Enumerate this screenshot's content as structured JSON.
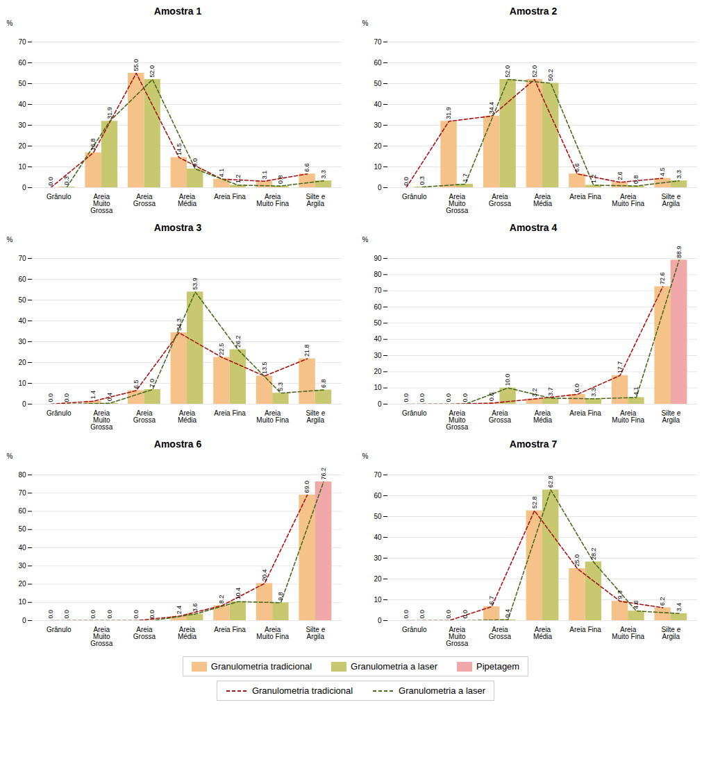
{
  "legend": "bottom",
  "chart_data": [
    {
      "type": "bar",
      "title": "Amostra 1",
      "ylabel": "%",
      "categories": [
        "Grânulo",
        "Areia\nMuito\nGrossa",
        "Areia\nGrossa",
        "Areia\nMédia",
        "Areia Fina",
        "Areia\nMuito Fina",
        "Silte e\nArgila"
      ],
      "ylim": [
        0,
        70
      ],
      "yticks": [
        0,
        10,
        20,
        30,
        40,
        50,
        60,
        70
      ],
      "grid": true,
      "data_labels": true,
      "series": [
        {
          "name": "Granulometria tradicional",
          "color": "#f5c28a",
          "values": [
            0.0,
            16.8,
            55.0,
            14.5,
            4.1,
            3.1,
            6.6
          ],
          "value_labels": [
            "0.0",
            "16.8",
            "55.0",
            "14.5",
            "4.1",
            "3.1",
            "6.6"
          ]
        },
        {
          "name": "Granulometria a laser",
          "color": "#c8c870",
          "values": [
            0.3,
            31.9,
            52.0,
            9.0,
            1.2,
            0.8,
            3.3
          ],
          "value_labels": [
            "0.3",
            "31.9",
            "52.0",
            "9.0",
            "1.2",
            "0.8",
            "3.3"
          ]
        },
        {
          "name": "Granulometria tradicional",
          "type": "line",
          "line_style": "dashed",
          "color": "#aa1111",
          "values": [
            0.0,
            16.8,
            55.0,
            14.5,
            4.1,
            3.1,
            6.6
          ]
        },
        {
          "name": "Granulometria a laser",
          "type": "line",
          "line_style": "dashed",
          "color": "#4a6a20",
          "values": [
            0.3,
            31.9,
            52.0,
            9.0,
            1.2,
            0.8,
            3.3
          ]
        }
      ]
    },
    {
      "type": "bar",
      "title": "Amostra 2",
      "ylabel": "%",
      "categories": [
        "Grânulo",
        "Areia\nMuito\nGrossa",
        "Areia\nGrossa",
        "Areia\nMédia",
        "Areia Fina",
        "Areia\nMuito Fina",
        "Silte e\nArgila"
      ],
      "ylim": [
        0,
        70
      ],
      "yticks": [
        0,
        10,
        20,
        30,
        40,
        50,
        60,
        70
      ],
      "grid": true,
      "data_labels": true,
      "series": [
        {
          "name": "Granulometria tradicional",
          "color": "#f5c28a",
          "values": [
            0.0,
            31.9,
            34.4,
            52.0,
            6.6,
            2.6,
            4.5
          ],
          "value_labels": [
            "0.0",
            "31.9",
            "34.4",
            "52.0",
            "6.6",
            "2.6",
            "4.5"
          ]
        },
        {
          "name": "Granulometria a laser",
          "color": "#c8c870",
          "values": [
            0.3,
            1.7,
            52.0,
            50.2,
            1.2,
            0.8,
            3.3
          ],
          "value_labels": [
            "0.3",
            "1.7",
            "52.0",
            "50.2",
            "1.2",
            "0.8",
            "3.3"
          ]
        },
        {
          "name": "Granulometria tradicional",
          "type": "line",
          "line_style": "dashed",
          "color": "#aa1111",
          "values": [
            0.0,
            31.9,
            34.4,
            52.0,
            6.6,
            2.6,
            4.5
          ]
        },
        {
          "name": "Granulometria a laser",
          "type": "line",
          "line_style": "dashed",
          "color": "#4a6a20",
          "values": [
            0.3,
            1.7,
            52.0,
            50.2,
            1.2,
            0.8,
            3.3
          ]
        }
      ]
    },
    {
      "type": "bar",
      "title": "Amostra 3",
      "ylabel": "%",
      "categories": [
        "Grânulo",
        "Areia\nMuito\nGrossa",
        "Areia\nGrossa",
        "Areia\nMédia",
        "Areia Fina",
        "Areia\nMuito Fina",
        "Silte e\nArgila"
      ],
      "ylim": [
        0,
        70
      ],
      "yticks": [
        0,
        10,
        20,
        30,
        40,
        50,
        60,
        70
      ],
      "grid": true,
      "data_labels": true,
      "series": [
        {
          "name": "Granulometria tradicional",
          "color": "#f5c28a",
          "values": [
            0.0,
            1.4,
            6.5,
            34.3,
            22.5,
            13.5,
            21.8
          ],
          "value_labels": [
            "0.0",
            "1.4",
            "6.5",
            "34.3",
            "22.5",
            "13.5",
            "21.8"
          ]
        },
        {
          "name": "Granulometria a laser",
          "color": "#c8c870",
          "values": [
            0.0,
            0.4,
            7.0,
            53.9,
            26.2,
            5.3,
            6.8
          ],
          "value_labels": [
            "0.0",
            "0.4",
            "7.0",
            "53.9",
            "26.2",
            "5.3",
            "6.8"
          ]
        },
        {
          "name": "Granulometria tradicional",
          "type": "line",
          "line_style": "dashed",
          "color": "#aa1111",
          "values": [
            0.0,
            1.4,
            6.5,
            34.3,
            22.5,
            13.5,
            21.8
          ]
        },
        {
          "name": "Granulometria a laser",
          "type": "line",
          "line_style": "dashed",
          "color": "#4a6a20",
          "values": [
            0.0,
            0.4,
            7.0,
            53.9,
            26.2,
            5.3,
            6.8
          ]
        }
      ]
    },
    {
      "type": "bar",
      "title": "Amostra 4",
      "ylabel": "%",
      "categories": [
        "Grânulo",
        "Areia\nMuito\nGrossa",
        "Areia\nGrossa",
        "Areia\nMédia",
        "Areia Fina",
        "Areia\nMuito Fina",
        "Silte e\nArgila"
      ],
      "ylim": [
        0,
        90
      ],
      "yticks": [
        0,
        10,
        20,
        30,
        40,
        50,
        60,
        70,
        80,
        90
      ],
      "grid": true,
      "data_labels": true,
      "series": [
        {
          "name": "Granulometria tradicional",
          "color": "#f5c28a",
          "values": [
            0.0,
            0.0,
            0.6,
            3.2,
            6.0,
            17.7,
            72.6
          ],
          "value_labels": [
            "0.0",
            "0.0",
            "0.6",
            "3.2",
            "6.0",
            "17.7",
            "72.6"
          ]
        },
        {
          "name": "Granulometria a laser",
          "color": "#c8c870",
          "values": [
            0.0,
            0.0,
            10.0,
            3.7,
            3.3,
            4.1,
            88.9
          ],
          "value_labels": [
            "0.0",
            "0.0",
            "10.0",
            "3.7",
            "3.3",
            "4.1",
            "88.9"
          ]
        },
        {
          "name": "Pipetagem",
          "color": "#f0a8a8",
          "values": [
            null,
            null,
            null,
            null,
            null,
            null,
            88.9
          ]
        },
        {
          "name": "Granulometria tradicional",
          "type": "line",
          "line_style": "dashed",
          "color": "#aa1111",
          "values": [
            0.0,
            0.0,
            0.6,
            3.2,
            6.0,
            17.7,
            72.6
          ]
        },
        {
          "name": "Granulometria a laser",
          "type": "line",
          "line_style": "dashed",
          "color": "#4a6a20",
          "values": [
            0.0,
            0.0,
            10.0,
            3.7,
            3.3,
            4.1,
            88.9
          ]
        }
      ]
    },
    {
      "type": "bar",
      "title": "Amostra 6",
      "ylabel": "%",
      "categories": [
        "Grânulo",
        "Areia\nMuito\nGrossa",
        "Areia\nGrossa",
        "Areia\nMédia",
        "Areia Fina",
        "Areia\nMuito Fina",
        "Silte e\nArgila"
      ],
      "ylim": [
        0,
        80
      ],
      "yticks": [
        0,
        10,
        20,
        30,
        40,
        50,
        60,
        70,
        80
      ],
      "grid": true,
      "data_labels": true,
      "series": [
        {
          "name": "Granulometria tradicional",
          "color": "#f5c28a",
          "values": [
            0.0,
            0.0,
            0.0,
            2.4,
            8.2,
            20.4,
            69.0
          ],
          "value_labels": [
            "0.0",
            "0.0",
            "0.0",
            "2.4",
            "8.2",
            "20.4",
            "69.0"
          ]
        },
        {
          "name": "Granulometria a laser",
          "color": "#c8c870",
          "values": [
            0.0,
            0.0,
            0.0,
            3.6,
            10.4,
            9.8,
            76.2
          ],
          "value_labels": [
            "0.0",
            "0.0",
            "0.0",
            "3.6",
            "10.4",
            "9.8",
            "76.2"
          ]
        },
        {
          "name": "Pipetagem",
          "color": "#f0a8a8",
          "values": [
            null,
            null,
            null,
            null,
            null,
            null,
            76.2
          ]
        },
        {
          "name": "Granulometria tradicional",
          "type": "line",
          "line_style": "dashed",
          "color": "#aa1111",
          "values": [
            0.0,
            0.0,
            0.0,
            2.4,
            8.2,
            20.4,
            69.0
          ]
        },
        {
          "name": "Granulometria a laser",
          "type": "line",
          "line_style": "dashed",
          "color": "#4a6a20",
          "values": [
            0.0,
            0.0,
            0.0,
            3.6,
            10.4,
            9.8,
            76.2
          ]
        }
      ]
    },
    {
      "type": "bar",
      "title": "Amostra 7",
      "ylabel": "%",
      "categories": [
        "Grânulo",
        "Areia\nMuito\nGrossa",
        "Areia\nGrossa",
        "Areia\nMédia",
        "Areia Fina",
        "Areia\nMuito Fina",
        "Silte e\nArgila"
      ],
      "ylim": [
        0,
        70
      ],
      "yticks": [
        0,
        10,
        20,
        30,
        40,
        50,
        60,
        70
      ],
      "grid": true,
      "data_labels": true,
      "series": [
        {
          "name": "Granulometria tradicional",
          "color": "#f5c28a",
          "values": [
            0.0,
            0.0,
            6.7,
            52.8,
            25.0,
            9.3,
            6.2
          ],
          "value_labels": [
            "0.0",
            "0.0",
            "6.7",
            "52.8",
            "25.0",
            "9.3",
            "6.2"
          ]
        },
        {
          "name": "Granulometria a laser",
          "color": "#c8c870",
          "values": [
            0.0,
            0.0,
            0.4,
            62.8,
            28.2,
            4.6,
            3.4
          ],
          "value_labels": [
            "0.0",
            "0.0",
            "0.4",
            "62.8",
            "28.2",
            "4.6",
            "3.4"
          ]
        },
        {
          "name": "Granulometria tradicional",
          "type": "line",
          "line_style": "dashed",
          "color": "#aa1111",
          "values": [
            0.0,
            0.0,
            6.7,
            52.8,
            25.0,
            9.3,
            6.2
          ]
        },
        {
          "name": "Granulometria a laser",
          "type": "line",
          "line_style": "dashed",
          "color": "#4a6a20",
          "values": [
            0.0,
            0.0,
            0.4,
            62.8,
            28.2,
            4.6,
            3.4
          ]
        }
      ]
    }
  ]
}
